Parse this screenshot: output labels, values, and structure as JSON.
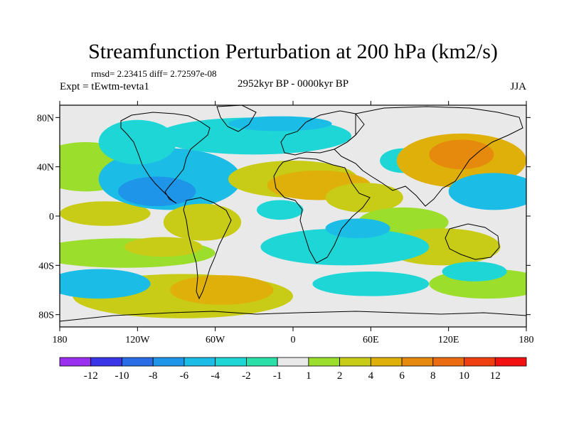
{
  "chart_data": {
    "type": "contour-map",
    "title": "Streamfunction Perturbation at 200 hPa (km2/s)",
    "stats_text": "rmsd= 2.23415 diff= 2.72597e-08",
    "experiment": "Expt = tEwtm-tevta1",
    "period": "2952kyr BP - 0000kyr BP",
    "season": "JJA",
    "x_ticks": [
      "180",
      "120W",
      "60W",
      "0",
      "60E",
      "120E",
      "180"
    ],
    "y_ticks": [
      "80N",
      "40N",
      "0",
      "40S",
      "80S"
    ],
    "lon_range": [
      -180,
      180
    ],
    "lat_range": [
      -90,
      90
    ],
    "colorbar": {
      "colors": [
        "#9a2ff0",
        "#3a36e8",
        "#2a6ce6",
        "#1e95e8",
        "#1bbde6",
        "#1fd6d6",
        "#2be0a8",
        "#e9e9e9",
        "#9bde2b",
        "#c8cc16",
        "#dfb00a",
        "#e58a0c",
        "#ea6b10",
        "#ef3e10",
        "#f21010"
      ],
      "labels": [
        "-12",
        "-10",
        "-8",
        "-6",
        "-4",
        "-2",
        "-1",
        "1",
        "2",
        "4",
        "6",
        "8",
        "10",
        "12"
      ]
    },
    "field_blobs": [
      {
        "lon": -160,
        "lat": 40,
        "rx": 40,
        "ry": 20,
        "level": 1
      },
      {
        "lon": -145,
        "lat": 2,
        "rx": 35,
        "ry": 10,
        "level": 2
      },
      {
        "lon": -95,
        "lat": 30,
        "rx": 55,
        "ry": 25,
        "level": -4
      },
      {
        "lon": -105,
        "lat": 20,
        "rx": 30,
        "ry": 12,
        "level": -6
      },
      {
        "lon": -120,
        "lat": 60,
        "rx": 30,
        "ry": 18,
        "level": -2
      },
      {
        "lon": -30,
        "lat": 65,
        "rx": 75,
        "ry": 15,
        "level": -2
      },
      {
        "lon": -10,
        "lat": 75,
        "rx": 40,
        "ry": 6,
        "level": -4
      },
      {
        "lon": 0,
        "lat": 30,
        "rx": 50,
        "ry": 15,
        "level": 2
      },
      {
        "lon": 20,
        "lat": 25,
        "rx": 40,
        "ry": 12,
        "level": 4
      },
      {
        "lon": 55,
        "lat": 15,
        "rx": 30,
        "ry": 12,
        "level": 2
      },
      {
        "lon": -10,
        "lat": 5,
        "rx": 18,
        "ry": 8,
        "level": -2
      },
      {
        "lon": 85,
        "lat": 45,
        "rx": 18,
        "ry": 10,
        "level": -2
      },
      {
        "lon": 130,
        "lat": 45,
        "rx": 50,
        "ry": 22,
        "level": 4
      },
      {
        "lon": 130,
        "lat": 50,
        "rx": 25,
        "ry": 12,
        "level": 6
      },
      {
        "lon": 155,
        "lat": 20,
        "rx": 35,
        "ry": 15,
        "level": -4
      },
      {
        "lon": 85,
        "lat": -5,
        "rx": 35,
        "ry": 12,
        "level": 1
      },
      {
        "lon": 115,
        "lat": -25,
        "rx": 45,
        "ry": 15,
        "level": 2
      },
      {
        "lon": -130,
        "lat": -30,
        "rx": 70,
        "ry": 12,
        "level": 1
      },
      {
        "lon": -100,
        "lat": -25,
        "rx": 30,
        "ry": 8,
        "level": 2
      },
      {
        "lon": -70,
        "lat": -5,
        "rx": 30,
        "ry": 15,
        "level": 2
      },
      {
        "lon": -85,
        "lat": -65,
        "rx": 85,
        "ry": 18,
        "level": 2
      },
      {
        "lon": -55,
        "lat": -60,
        "rx": 40,
        "ry": 12,
        "level": 4
      },
      {
        "lon": -150,
        "lat": -55,
        "rx": 40,
        "ry": 12,
        "level": -4
      },
      {
        "lon": 40,
        "lat": -25,
        "rx": 65,
        "ry": 15,
        "level": -2
      },
      {
        "lon": 50,
        "lat": -10,
        "rx": 25,
        "ry": 8,
        "level": -4
      },
      {
        "lon": 60,
        "lat": -55,
        "rx": 45,
        "ry": 10,
        "level": -2
      },
      {
        "lon": 150,
        "lat": -55,
        "rx": 45,
        "ry": 12,
        "level": 1
      },
      {
        "lon": 140,
        "lat": -45,
        "rx": 25,
        "ry": 8,
        "level": -2
      }
    ]
  }
}
